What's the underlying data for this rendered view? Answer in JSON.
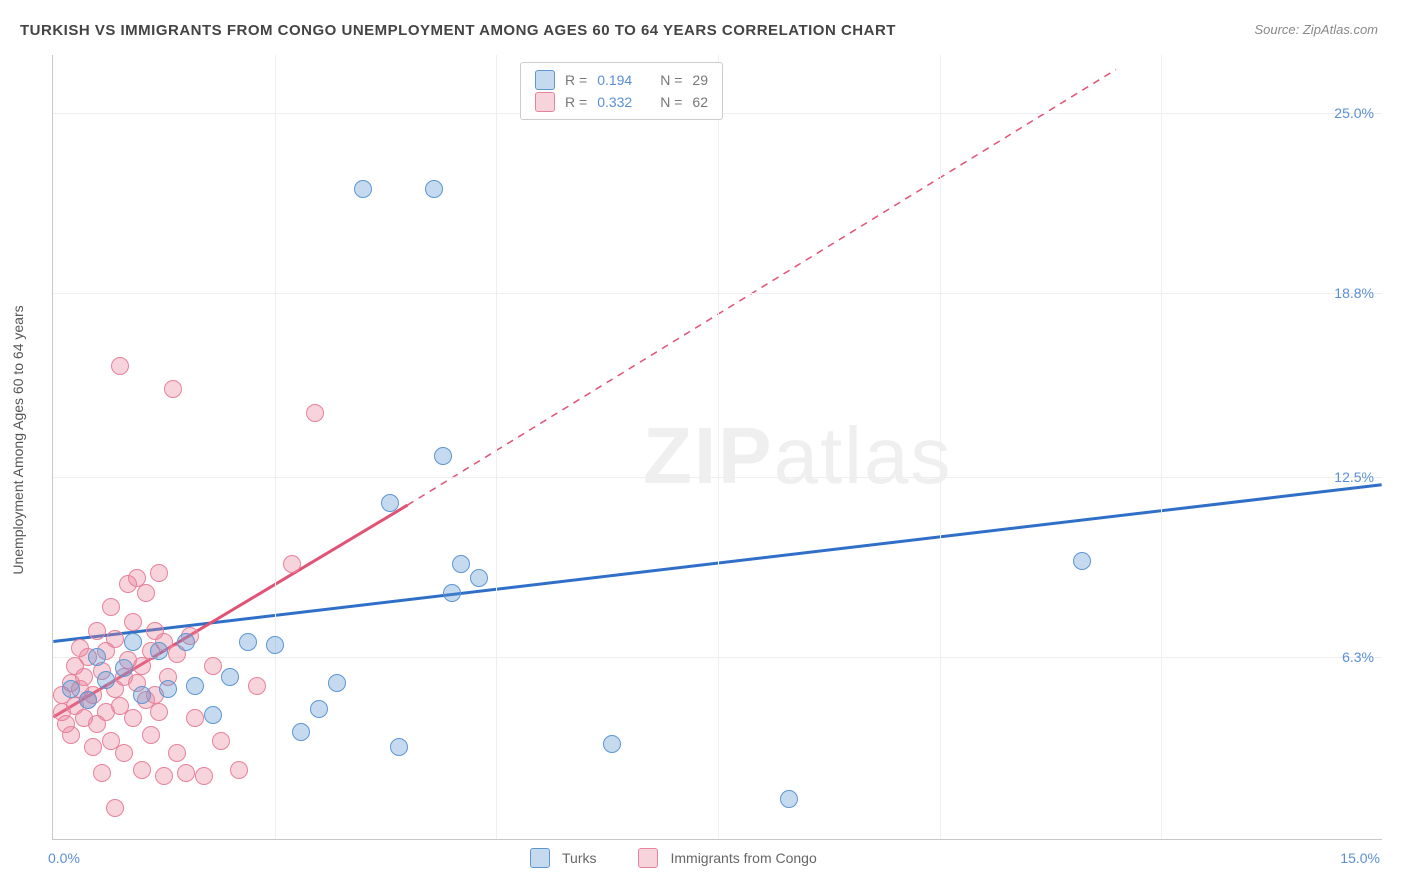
{
  "title": "TURKISH VS IMMIGRANTS FROM CONGO UNEMPLOYMENT AMONG AGES 60 TO 64 YEARS CORRELATION CHART",
  "source": "Source: ZipAtlas.com",
  "ylabel": "Unemployment Among Ages 60 to 64 years",
  "watermark_zip": "ZIP",
  "watermark_atlas": "atlas",
  "chart": {
    "type": "scatter",
    "background_color": "#ffffff",
    "grid_color": "#eeeeee",
    "axis_color": "#c8c8c8",
    "tick_label_color": "#5a8fd6",
    "xlim": [
      0.0,
      15.0
    ],
    "ylim": [
      0.0,
      27.0
    ],
    "yticks": [
      6.3,
      12.5,
      18.8,
      25.0
    ],
    "ytick_labels": [
      "6.3%",
      "12.5%",
      "18.8%",
      "25.0%"
    ],
    "xtick_min_label": "0.0%",
    "xtick_max_label": "15.0%",
    "x_gridlines": [
      2.5,
      5.0,
      7.5,
      10.0,
      12.5
    ],
    "marker_radius": 9,
    "marker_border_width": 1.5,
    "marker_fill_opacity": 0.35,
    "series": {
      "turks": {
        "label": "Turks",
        "color": "#3d7cc9",
        "fill": "rgba(93,150,210,0.35)",
        "stroke": "#5d96d2",
        "R": "0.194",
        "N": "29",
        "trend_color": "#2f6fc7",
        "trend_width": 3,
        "trend": {
          "x1": 0.0,
          "y1": 6.8,
          "x2": 15.0,
          "y2": 12.2
        },
        "points": [
          [
            0.2,
            5.2
          ],
          [
            0.4,
            4.8
          ],
          [
            0.5,
            6.3
          ],
          [
            0.6,
            5.5
          ],
          [
            0.8,
            5.9
          ],
          [
            0.9,
            6.8
          ],
          [
            1.0,
            5.0
          ],
          [
            1.2,
            6.5
          ],
          [
            1.3,
            5.2
          ],
          [
            1.5,
            6.8
          ],
          [
            1.6,
            5.3
          ],
          [
            1.8,
            4.3
          ],
          [
            2.0,
            5.6
          ],
          [
            2.2,
            6.8
          ],
          [
            2.5,
            6.7
          ],
          [
            2.8,
            3.7
          ],
          [
            3.0,
            4.5
          ],
          [
            3.2,
            5.4
          ],
          [
            3.5,
            22.4
          ],
          [
            3.8,
            11.6
          ],
          [
            3.9,
            3.2
          ],
          [
            4.3,
            22.4
          ],
          [
            4.4,
            13.2
          ],
          [
            4.5,
            8.5
          ],
          [
            4.6,
            9.5
          ],
          [
            4.8,
            9.0
          ],
          [
            6.3,
            3.3
          ],
          [
            8.3,
            1.4
          ],
          [
            11.6,
            9.6
          ]
        ]
      },
      "congo": {
        "label": "Immigrants from Congo",
        "color": "#e36e8c",
        "fill": "rgba(232,130,155,0.35)",
        "stroke": "#e8829b",
        "R": "0.332",
        "N": "62",
        "trend_color": "#e15374",
        "trend_width": 3,
        "trend_solid": {
          "x1": 0.0,
          "y1": 4.2,
          "x2": 4.0,
          "y2": 11.5
        },
        "trend_dash": {
          "x1": 4.0,
          "y1": 11.5,
          "x2": 12.0,
          "y2": 26.5
        },
        "points": [
          [
            0.1,
            4.4
          ],
          [
            0.1,
            5.0
          ],
          [
            0.15,
            4.0
          ],
          [
            0.2,
            5.4
          ],
          [
            0.2,
            3.6
          ],
          [
            0.25,
            6.0
          ],
          [
            0.25,
            4.6
          ],
          [
            0.3,
            5.2
          ],
          [
            0.3,
            6.6
          ],
          [
            0.35,
            4.2
          ],
          [
            0.35,
            5.6
          ],
          [
            0.4,
            4.8
          ],
          [
            0.4,
            6.3
          ],
          [
            0.45,
            3.2
          ],
          [
            0.45,
            5.0
          ],
          [
            0.5,
            7.2
          ],
          [
            0.5,
            4.0
          ],
          [
            0.55,
            5.8
          ],
          [
            0.55,
            2.3
          ],
          [
            0.6,
            6.5
          ],
          [
            0.6,
            4.4
          ],
          [
            0.65,
            8.0
          ],
          [
            0.65,
            3.4
          ],
          [
            0.7,
            5.2
          ],
          [
            0.7,
            6.9
          ],
          [
            0.75,
            4.6
          ],
          [
            0.75,
            16.3
          ],
          [
            0.8,
            5.6
          ],
          [
            0.8,
            3.0
          ],
          [
            0.85,
            6.2
          ],
          [
            0.85,
            8.8
          ],
          [
            0.9,
            4.2
          ],
          [
            0.9,
            7.5
          ],
          [
            0.95,
            5.4
          ],
          [
            0.95,
            9.0
          ],
          [
            1.0,
            6.0
          ],
          [
            1.0,
            2.4
          ],
          [
            1.05,
            4.8
          ],
          [
            1.05,
            8.5
          ],
          [
            1.1,
            6.5
          ],
          [
            1.1,
            3.6
          ],
          [
            1.15,
            5.0
          ],
          [
            1.15,
            7.2
          ],
          [
            1.2,
            9.2
          ],
          [
            1.2,
            4.4
          ],
          [
            1.25,
            6.8
          ],
          [
            1.25,
            2.2
          ],
          [
            1.3,
            5.6
          ],
          [
            1.35,
            15.5
          ],
          [
            1.4,
            3.0
          ],
          [
            1.4,
            6.4
          ],
          [
            1.5,
            2.3
          ],
          [
            1.55,
            7.0
          ],
          [
            1.6,
            4.2
          ],
          [
            1.7,
            2.2
          ],
          [
            1.8,
            6.0
          ],
          [
            1.9,
            3.4
          ],
          [
            2.1,
            2.4
          ],
          [
            2.3,
            5.3
          ],
          [
            2.7,
            9.5
          ],
          [
            2.95,
            14.7
          ],
          [
            0.7,
            1.1
          ]
        ]
      }
    },
    "legend_top": {
      "R_label": "R =",
      "N_label": "N ="
    }
  }
}
